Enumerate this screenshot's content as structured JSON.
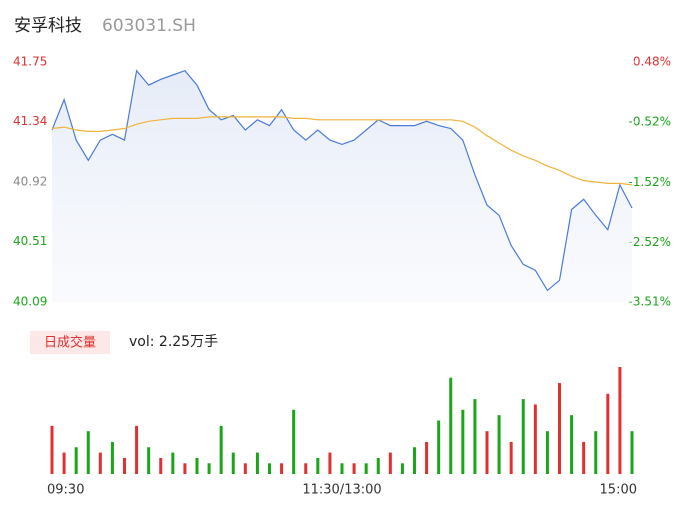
{
  "chart_data": {
    "type": "line",
    "title": "安孚科技",
    "subtitle": "603031.SH",
    "categories": [
      "09:30",
      null,
      null,
      null,
      null,
      null,
      null,
      null,
      null,
      null,
      null,
      null,
      null,
      null,
      null,
      null,
      null,
      null,
      null,
      null,
      null,
      null,
      null,
      null,
      "11:30/13:00",
      null,
      null,
      null,
      null,
      null,
      null,
      null,
      null,
      null,
      null,
      null,
      null,
      null,
      null,
      null,
      null,
      null,
      null,
      null,
      null,
      null,
      null,
      null,
      "15:00"
    ],
    "series": [
      {
        "name": "price",
        "color": "#4a7bd8",
        "values": [
          41.28,
          41.49,
          41.21,
          41.07,
          41.21,
          41.25,
          41.21,
          41.69,
          41.59,
          41.63,
          41.66,
          41.69,
          41.59,
          41.42,
          41.35,
          41.38,
          41.28,
          41.35,
          41.31,
          41.42,
          41.28,
          41.21,
          41.28,
          41.21,
          41.18,
          41.21,
          41.28,
          41.35,
          41.31,
          41.31,
          41.31,
          41.34,
          41.31,
          41.29,
          41.21,
          40.97,
          40.76,
          40.69,
          40.48,
          40.35,
          40.31,
          40.17,
          40.24,
          40.73,
          40.8,
          40.69,
          40.59,
          40.9,
          40.74
        ]
      },
      {
        "name": "average",
        "color": "#f0b43c",
        "values": [
          41.29,
          41.3,
          41.28,
          41.27,
          41.27,
          41.28,
          41.29,
          41.32,
          41.34,
          41.35,
          41.36,
          41.36,
          41.36,
          41.37,
          41.37,
          41.37,
          41.37,
          41.37,
          41.37,
          41.37,
          41.36,
          41.36,
          41.35,
          41.35,
          41.35,
          41.35,
          41.35,
          41.35,
          41.35,
          41.35,
          41.35,
          41.35,
          41.35,
          41.35,
          41.34,
          41.3,
          41.24,
          41.19,
          41.14,
          41.1,
          41.07,
          41.03,
          41.0,
          40.96,
          40.93,
          40.92,
          40.91,
          40.91,
          40.9
        ]
      }
    ],
    "ylim": [
      40.09,
      41.75
    ],
    "yticks": [
      41.75,
      41.34,
      40.92,
      40.51,
      40.09
    ],
    "y2lim": [
      -3.51,
      0.48
    ],
    "y2ticks": [
      {
        "value": 0.48,
        "label": "0.48%"
      },
      {
        "value": -0.52,
        "label": "-0.52%"
      },
      {
        "value": -1.52,
        "label": "-1.52%"
      },
      {
        "value": -2.52,
        "label": "-2.52%"
      },
      {
        "value": -3.51,
        "label": "-3.51%"
      }
    ],
    "volume": {
      "label": "日成交量",
      "text": "vol: 2.25万手",
      "values": [
        45,
        20,
        25,
        40,
        20,
        30,
        15,
        45,
        25,
        15,
        20,
        10,
        15,
        10,
        45,
        20,
        10,
        20,
        10,
        10,
        60,
        10,
        15,
        20,
        10,
        10,
        10,
        15,
        20,
        10,
        25,
        30,
        50,
        90,
        60,
        70,
        40,
        55,
        30,
        70,
        65,
        40,
        85,
        55,
        30,
        40,
        75,
        100,
        40
      ],
      "colors": [
        "#e03030",
        "#e03030",
        "#1aa51a",
        "#1aa51a",
        "#e03030",
        "#1aa51a",
        "#e03030",
        "#e03030",
        "#1aa51a",
        "#e03030",
        "#1aa51a",
        "#e03030",
        "#1aa51a",
        "#1aa51a",
        "#1aa51a",
        "#1aa51a",
        "#e03030",
        "#1aa51a",
        "#1aa51a",
        "#e03030",
        "#1aa51a",
        "#e03030",
        "#1aa51a",
        "#e03030",
        "#1aa51a",
        "#e03030",
        "#1aa51a",
        "#1aa51a",
        "#e03030",
        "#1aa51a",
        "#1aa51a",
        "#e03030",
        "#1aa51a",
        "#1aa51a",
        "#1aa51a",
        "#1aa51a",
        "#e03030",
        "#1aa51a",
        "#e03030",
        "#1aa51a",
        "#e03030",
        "#1aa51a",
        "#e03030",
        "#1aa51a",
        "#e03030",
        "#1aa51a",
        "#e03030",
        "#e03030",
        "#1aa51a"
      ]
    },
    "up_color": "#e03030",
    "down_color": "#1aa51a",
    "flat_color": "#888888"
  }
}
